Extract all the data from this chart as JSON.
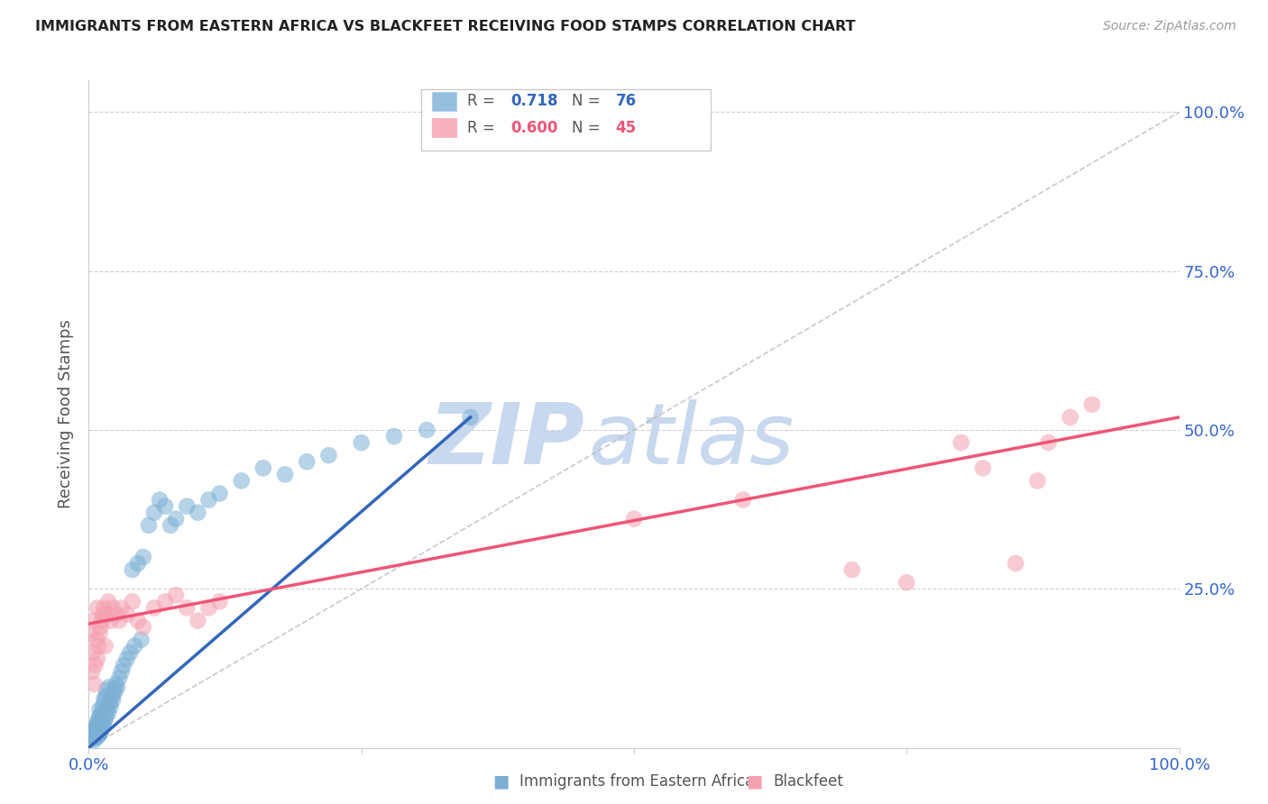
{
  "title": "IMMIGRANTS FROM EASTERN AFRICA VS BLACKFEET RECEIVING FOOD STAMPS CORRELATION CHART",
  "source": "Source: ZipAtlas.com",
  "ylabel": "Receiving Food Stamps",
  "legend_label1": "Immigrants from Eastern Africa",
  "legend_label2": "Blackfeet",
  "legend_R1": "0.718",
  "legend_N1": "76",
  "legend_R2": "0.600",
  "legend_N2": "45",
  "color_blue": "#7BAFD4",
  "color_pink": "#F4A0B0",
  "color_blue_line": "#3366BB",
  "color_pink_line": "#EE5577",
  "color_diag": "#BBBBBB",
  "watermark_zip": "#C8D8EE",
  "watermark_atlas": "#C8D8EE",
  "title_color": "#222222",
  "axis_label_color": "#3366CC",
  "blue_x": [
    0.002,
    0.003,
    0.003,
    0.004,
    0.004,
    0.005,
    0.005,
    0.005,
    0.006,
    0.006,
    0.006,
    0.007,
    0.007,
    0.007,
    0.008,
    0.008,
    0.008,
    0.009,
    0.009,
    0.009,
    0.01,
    0.01,
    0.01,
    0.01,
    0.011,
    0.011,
    0.012,
    0.012,
    0.013,
    0.013,
    0.014,
    0.014,
    0.015,
    0.015,
    0.016,
    0.016,
    0.017,
    0.018,
    0.018,
    0.019,
    0.02,
    0.021,
    0.022,
    0.023,
    0.024,
    0.025,
    0.026,
    0.028,
    0.03,
    0.032,
    0.035,
    0.038,
    0.04,
    0.042,
    0.045,
    0.048,
    0.05,
    0.055,
    0.06,
    0.065,
    0.07,
    0.075,
    0.08,
    0.09,
    0.1,
    0.11,
    0.12,
    0.14,
    0.16,
    0.18,
    0.2,
    0.22,
    0.25,
    0.28,
    0.31,
    0.35
  ],
  "blue_y": [
    0.02,
    0.015,
    0.025,
    0.018,
    0.022,
    0.012,
    0.02,
    0.03,
    0.015,
    0.025,
    0.018,
    0.022,
    0.03,
    0.035,
    0.018,
    0.028,
    0.04,
    0.02,
    0.03,
    0.045,
    0.022,
    0.035,
    0.05,
    0.06,
    0.025,
    0.04,
    0.03,
    0.055,
    0.035,
    0.065,
    0.04,
    0.075,
    0.045,
    0.08,
    0.05,
    0.09,
    0.06,
    0.055,
    0.095,
    0.07,
    0.065,
    0.08,
    0.075,
    0.085,
    0.09,
    0.1,
    0.095,
    0.11,
    0.12,
    0.13,
    0.14,
    0.15,
    0.28,
    0.16,
    0.29,
    0.17,
    0.3,
    0.35,
    0.37,
    0.39,
    0.38,
    0.35,
    0.36,
    0.38,
    0.37,
    0.39,
    0.4,
    0.42,
    0.44,
    0.43,
    0.45,
    0.46,
    0.48,
    0.49,
    0.5,
    0.52
  ],
  "pink_x": [
    0.002,
    0.003,
    0.004,
    0.005,
    0.005,
    0.006,
    0.007,
    0.008,
    0.008,
    0.009,
    0.01,
    0.011,
    0.012,
    0.013,
    0.014,
    0.015,
    0.016,
    0.018,
    0.02,
    0.022,
    0.025,
    0.028,
    0.03,
    0.035,
    0.04,
    0.045,
    0.05,
    0.06,
    0.07,
    0.08,
    0.09,
    0.1,
    0.11,
    0.12,
    0.5,
    0.6,
    0.7,
    0.75,
    0.8,
    0.82,
    0.85,
    0.87,
    0.88,
    0.9,
    0.92
  ],
  "pink_y": [
    0.18,
    0.12,
    0.15,
    0.1,
    0.2,
    0.13,
    0.17,
    0.14,
    0.22,
    0.16,
    0.18,
    0.19,
    0.2,
    0.21,
    0.22,
    0.16,
    0.21,
    0.23,
    0.2,
    0.22,
    0.21,
    0.2,
    0.22,
    0.21,
    0.23,
    0.2,
    0.19,
    0.22,
    0.23,
    0.24,
    0.22,
    0.2,
    0.22,
    0.23,
    0.36,
    0.39,
    0.28,
    0.26,
    0.48,
    0.44,
    0.29,
    0.42,
    0.48,
    0.52,
    0.54
  ]
}
